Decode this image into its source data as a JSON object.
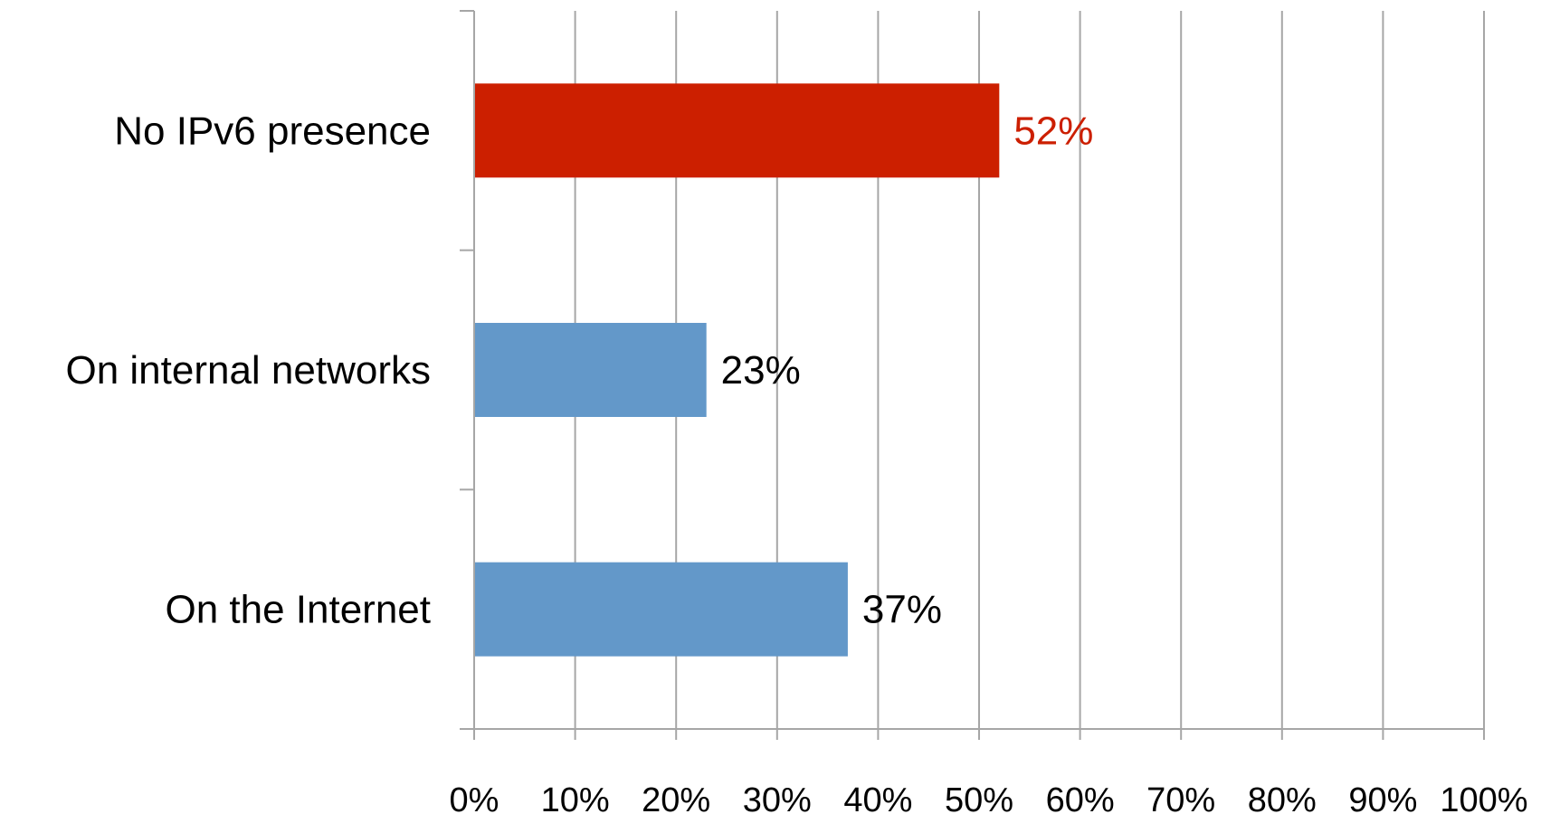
{
  "chart_data": {
    "type": "bar",
    "orientation": "horizontal",
    "categories": [
      "No IPv6 presence",
      "On internal networks",
      "On the Internet"
    ],
    "values": [
      52,
      23,
      37
    ],
    "data_labels": [
      "52%",
      "23%",
      "37%"
    ],
    "colors": [
      "#cc1f00",
      "#6398c9",
      "#6398c9"
    ],
    "label_colors": [
      "#cc1f00",
      "#000000",
      "#000000"
    ],
    "xlim": [
      0,
      100
    ],
    "xticks": [
      0,
      10,
      20,
      30,
      40,
      50,
      60,
      70,
      80,
      90,
      100
    ],
    "xtick_labels": [
      "0%",
      "10%",
      "20%",
      "30%",
      "40%",
      "50%",
      "60%",
      "70%",
      "80%",
      "90%",
      "100%"
    ],
    "grid": "vertical",
    "gridline_color": "#a6a6a6",
    "legend": "none",
    "title": "",
    "xlabel": "",
    "ylabel": ""
  }
}
